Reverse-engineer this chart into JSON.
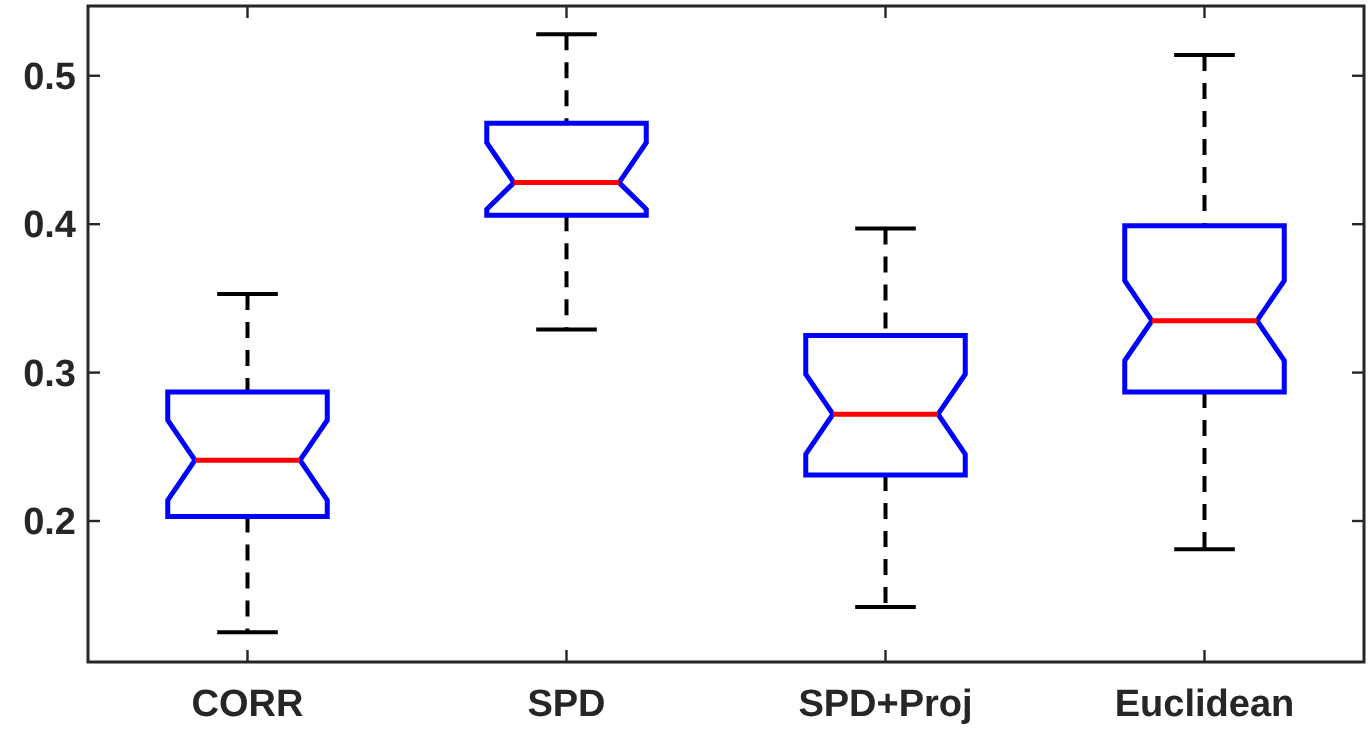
{
  "chart_data": {
    "type": "box",
    "categories": [
      "CORR",
      "SPD",
      "SPD+Proj",
      "Euclidean"
    ],
    "boxes": [
      {
        "low": 0.125,
        "q1": 0.203,
        "median": 0.241,
        "q3": 0.287,
        "high": 0.353
      },
      {
        "low": 0.329,
        "q1": 0.406,
        "median": 0.428,
        "q3": 0.468,
        "high": 0.528
      },
      {
        "low": 0.142,
        "q1": 0.231,
        "median": 0.272,
        "q3": 0.325,
        "high": 0.397
      },
      {
        "low": 0.181,
        "q1": 0.287,
        "median": 0.335,
        "q3": 0.399,
        "high": 0.514
      }
    ],
    "color": "#0000ff",
    "ylim": [
      0.105,
      0.547
    ],
    "yticks": [
      0.2,
      0.3,
      0.4,
      0.5
    ],
    "grid": false
  }
}
